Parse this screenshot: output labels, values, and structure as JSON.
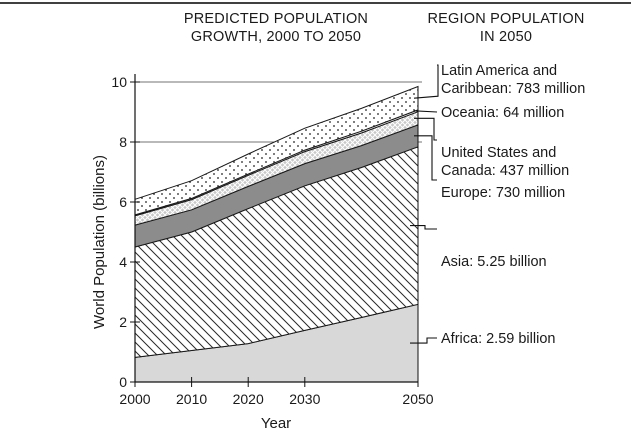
{
  "chart_data": {
    "type": "area",
    "stacked": true,
    "title_lines": [
      "PREDICTED POPULATION",
      "GROWTH, 2000 TO 2050"
    ],
    "legend_header_lines": [
      "REGION POPULATION",
      "IN 2050"
    ],
    "xlabel": "Year",
    "ylabel": "World Population (billions)",
    "x": [
      2000,
      2010,
      2020,
      2030,
      2040,
      2050
    ],
    "xlim": [
      2000,
      2050
    ],
    "ylim": [
      0,
      10
    ],
    "x_ticks": [
      "2000",
      "2010",
      "2020",
      "2030",
      "2050"
    ],
    "x_tick_values": [
      2000,
      2010,
      2020,
      2030,
      2050
    ],
    "y_ticks": [
      "0",
      "2",
      "4",
      "6",
      "8",
      "10"
    ],
    "y_tick_values": [
      0,
      2,
      4,
      6,
      8,
      10
    ],
    "gridlines_y": [
      8,
      10
    ],
    "series": [
      {
        "name": "Africa",
        "label_lines": [
          "Africa: 2.59 billion"
        ],
        "pattern": "solid-light",
        "values": [
          0.82,
          1.05,
          1.28,
          1.72,
          2.15,
          2.59
        ]
      },
      {
        "name": "Asia",
        "label_lines": [
          "Asia: 5.25 billion"
        ],
        "pattern": "hatch",
        "values": [
          3.68,
          3.95,
          4.5,
          4.82,
          5.0,
          5.25
        ]
      },
      {
        "name": "Europe",
        "label_lines": [
          "Europe: 730 million"
        ],
        "pattern": "solid-dark",
        "values": [
          0.73,
          0.74,
          0.74,
          0.74,
          0.73,
          0.73
        ]
      },
      {
        "name": "United States and Canada",
        "label_lines": [
          "United States and",
          "Canada: 437 million"
        ],
        "pattern": "crosshatch",
        "values": [
          0.31,
          0.34,
          0.37,
          0.4,
          0.42,
          0.44
        ]
      },
      {
        "name": "Oceania",
        "label_lines": [
          "Oceania: 64 million"
        ],
        "pattern": "solid-white",
        "values": [
          0.03,
          0.04,
          0.04,
          0.05,
          0.06,
          0.06
        ]
      },
      {
        "name": "Latin America and Caribbean",
        "label_lines": [
          "Latin America and",
          "Caribbean: 783 million"
        ],
        "pattern": "dots",
        "values": [
          0.52,
          0.59,
          0.67,
          0.73,
          0.76,
          0.78
        ]
      }
    ]
  }
}
